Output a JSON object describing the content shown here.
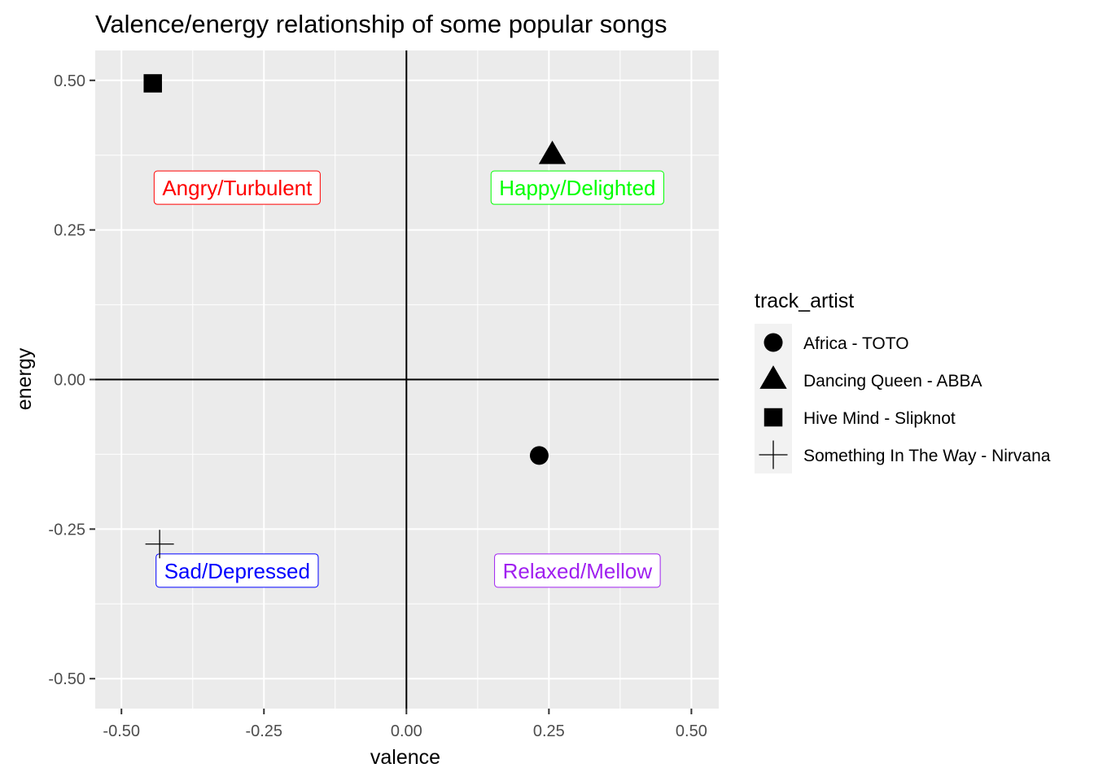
{
  "chart_data": {
    "type": "scatter",
    "title": "Valence/energy relationship of some popular songs",
    "xlabel": "valence",
    "ylabel": "energy",
    "xlim": [
      -0.546,
      0.548
    ],
    "ylim": [
      -0.55,
      0.55
    ],
    "x_ticks": [
      -0.5,
      -0.25,
      0.0,
      0.25,
      0.5
    ],
    "x_tick_labels": [
      "-0.50",
      "-0.25",
      "0.00",
      "0.25",
      "0.50"
    ],
    "y_ticks": [
      -0.5,
      -0.25,
      0.0,
      0.25,
      0.5
    ],
    "y_tick_labels": [
      "-0.50",
      "-0.25",
      "0.00",
      "0.25",
      "0.50"
    ],
    "grid": true,
    "reference_lines": {
      "x": 0,
      "y": 0
    },
    "legend": {
      "title": "track_artist",
      "position": "right"
    },
    "series": [
      {
        "name": "Africa - TOTO",
        "shape": "circle",
        "x": [
          0.233
        ],
        "y": [
          -0.127
        ]
      },
      {
        "name": "Dancing Queen - ABBA",
        "shape": "triangle",
        "x": [
          0.256
        ],
        "y": [
          0.375
        ]
      },
      {
        "name": "Hive Mind - Slipknot",
        "shape": "square",
        "x": [
          -0.445
        ],
        "y": [
          0.495
        ]
      },
      {
        "name": "Something In The Way - Nirvana",
        "shape": "plus",
        "x": [
          -0.433
        ],
        "y": [
          -0.275
        ]
      }
    ],
    "annotations": [
      {
        "text": "Angry/Turbulent",
        "x": -0.297,
        "y": 0.32,
        "color": "#ff0000"
      },
      {
        "text": "Happy/Delighted",
        "x": 0.3,
        "y": 0.32,
        "color": "#00ff00"
      },
      {
        "text": "Sad/Depressed",
        "x": -0.297,
        "y": -0.32,
        "color": "#0000ff"
      },
      {
        "text": "Relaxed/Mellow",
        "x": 0.3,
        "y": -0.32,
        "color": "#a020f0"
      }
    ],
    "colors": {
      "panel_background": "#ebebeb",
      "grid": "#ffffff",
      "points": "#000000"
    }
  }
}
